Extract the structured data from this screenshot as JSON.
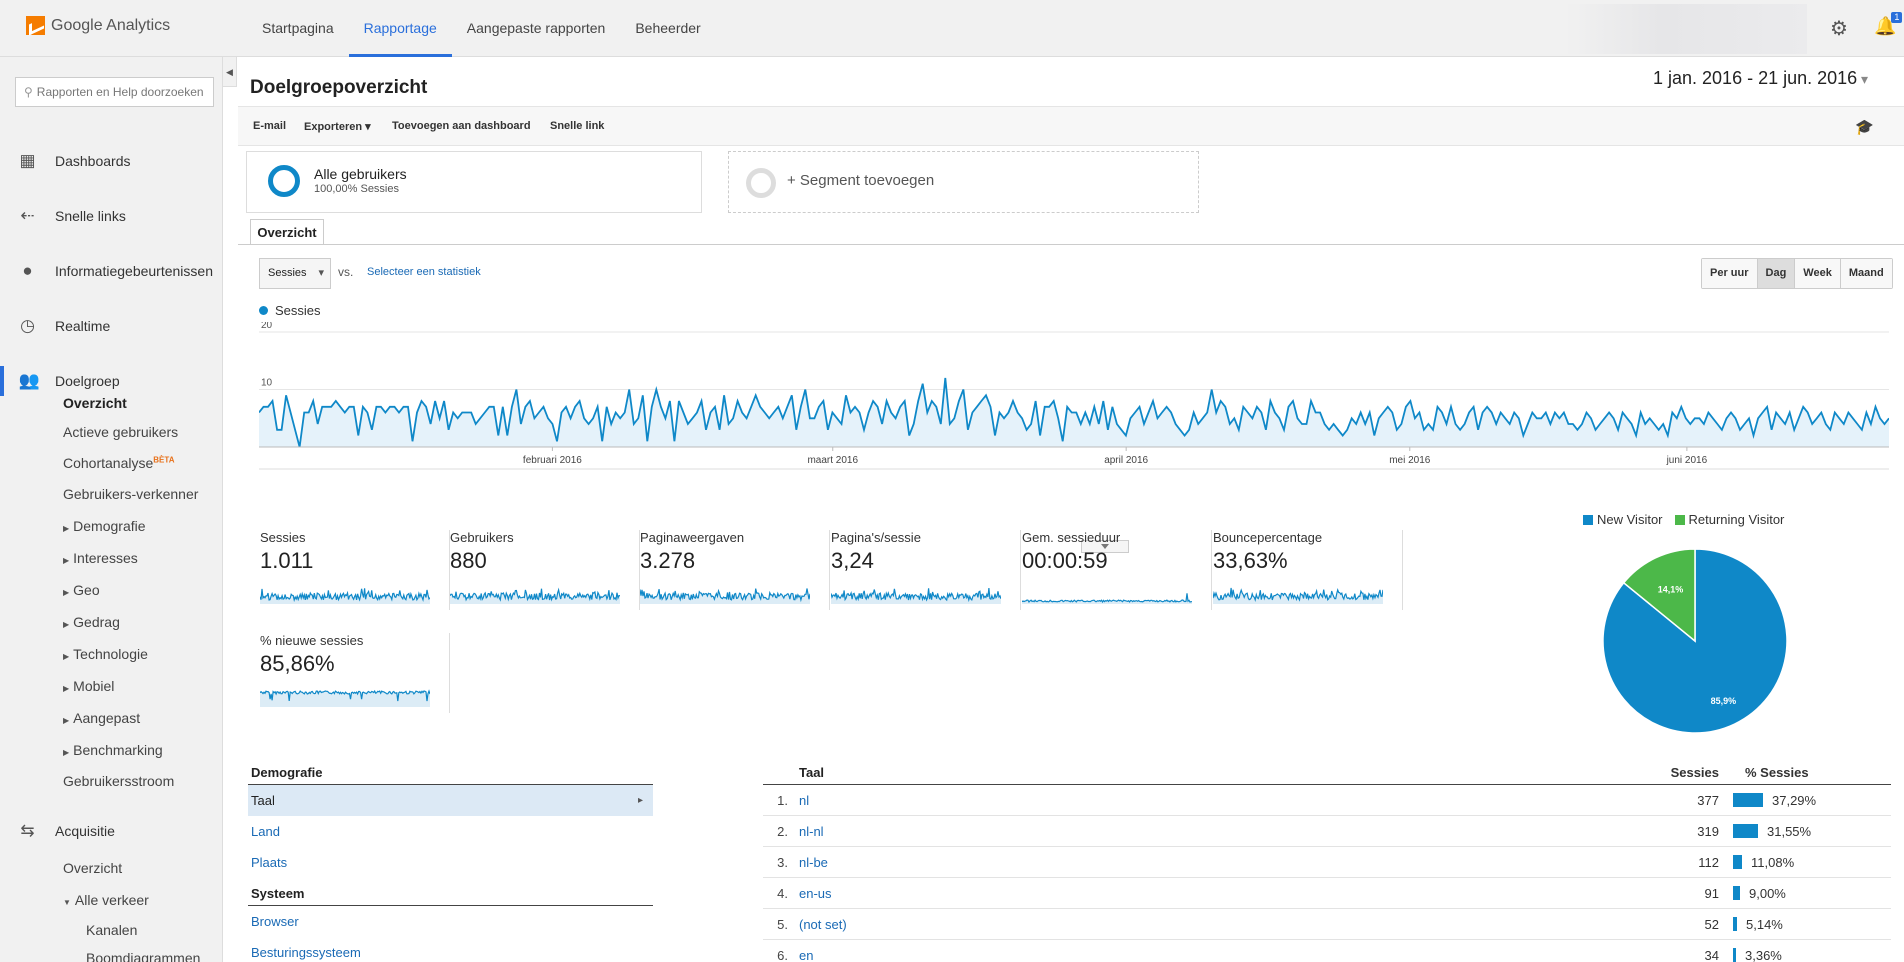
{
  "app": {
    "name": "Google Analytics"
  },
  "topnav": [
    "Startpagina",
    "Rapportage",
    "Aangepaste rapporten",
    "Beheerder"
  ],
  "notification_badge": "1",
  "sidebar": {
    "search_placeholder": "Rapporten en Help doorzoeken",
    "sections": [
      {
        "label": "Dashboards",
        "icon": "grid-icon"
      },
      {
        "label": "Snelle links",
        "icon": "arrows-icon"
      },
      {
        "label": "Informatiegebeurtenissen",
        "icon": "lightbulb-icon"
      },
      {
        "label": "Realtime",
        "icon": "clock-icon"
      },
      {
        "label": "Doelgroep",
        "icon": "people-icon"
      }
    ],
    "audience_items": [
      "Overzicht",
      "Actieve gebruikers",
      "Cohortanalyse",
      "Gebruikers-verkenner",
      "Demografie",
      "Interesses",
      "Geo",
      "Gedrag",
      "Technologie",
      "Mobiel",
      "Aangepast",
      "Benchmarking",
      "Gebruikersstroom"
    ],
    "beta_label": "BÈTA",
    "acquisition": {
      "label": "Acquisitie",
      "items": [
        "Overzicht",
        "Alle verkeer",
        "Kanalen",
        "Boomdiagrammen"
      ]
    }
  },
  "page": {
    "title": "Doelgroepoverzicht",
    "date_range": "1 jan. 2016 - 21 jun. 2016",
    "toolbar": [
      "E-mail",
      "Exporteren",
      "Toevoegen aan dashboard",
      "Snelle link"
    ],
    "segment": {
      "name": "Alle gebruikers",
      "sub": "100,00% Sessies",
      "add": "+ Segment toevoegen"
    },
    "tab": "Overzicht",
    "metric_select": "Sessies",
    "vs": "vs.",
    "select_stat": "Selecteer een statistiek",
    "period_buttons": [
      "Per uur",
      "Dag",
      "Week",
      "Maand"
    ],
    "active_period": "Dag"
  },
  "chart_data": {
    "type": "line",
    "series": [
      {
        "name": "Sessies",
        "values": [
          6,
          7,
          7,
          8,
          3,
          3,
          9,
          6,
          3,
          0,
          6,
          6,
          8,
          4,
          7,
          7,
          7,
          8,
          7,
          6,
          7,
          7,
          2,
          7,
          6,
          3,
          7,
          7,
          6,
          7,
          7,
          6,
          7,
          7,
          1,
          6,
          8,
          7,
          4,
          8,
          5,
          8,
          3,
          6,
          5,
          6,
          6,
          6,
          4,
          5,
          6,
          7,
          7,
          2,
          7,
          2,
          7,
          10,
          4,
          7,
          8,
          5,
          6,
          7,
          5,
          4,
          1,
          6,
          7,
          5,
          7,
          8,
          5,
          4,
          5,
          7,
          1,
          7,
          4,
          6,
          5,
          6,
          10,
          4,
          5,
          9,
          1,
          7,
          10,
          7,
          5,
          8,
          1,
          8,
          6,
          4,
          5,
          6,
          8,
          3,
          6,
          7,
          3,
          9,
          4,
          5,
          8,
          6,
          5,
          7,
          9,
          7,
          6,
          5,
          6,
          7,
          5,
          7,
          9,
          3,
          7,
          10,
          5,
          5,
          7,
          8,
          3,
          6,
          5,
          4,
          9,
          6,
          7,
          6,
          3,
          6,
          8,
          7,
          4,
          8,
          6,
          5,
          7,
          8,
          2,
          4,
          8,
          11,
          6,
          8,
          7,
          4,
          12,
          4,
          5,
          8,
          10,
          3,
          6,
          7,
          8,
          9,
          7,
          2,
          6,
          5,
          6,
          8,
          6,
          5,
          3,
          4,
          8,
          2,
          7,
          7,
          8,
          5,
          1,
          7,
          6,
          6,
          4,
          6,
          4,
          7,
          4,
          8,
          3,
          7,
          4,
          3,
          2,
          5,
          6,
          7,
          4,
          6,
          8,
          5,
          6,
          7,
          6,
          4,
          3,
          2,
          3,
          6,
          4,
          5,
          6,
          10,
          6,
          8,
          7,
          4,
          5,
          3,
          7,
          6,
          5,
          7,
          6,
          3,
          8,
          6,
          5,
          3,
          7,
          8,
          5,
          4,
          4,
          8,
          6,
          6,
          4,
          3,
          4,
          3,
          2,
          3,
          5,
          4,
          6,
          4,
          6,
          2,
          5,
          6,
          7,
          6,
          3,
          4,
          7,
          8,
          5,
          6,
          3,
          4,
          3,
          7,
          6,
          4,
          7,
          4,
          3,
          4,
          6,
          7,
          3,
          6,
          7,
          6,
          4,
          6,
          5,
          4,
          6,
          5,
          2,
          4,
          6,
          5,
          5,
          6,
          4,
          6,
          5,
          6,
          4,
          4,
          3,
          4,
          6,
          5,
          3,
          4,
          5,
          6,
          5,
          3,
          6,
          5,
          4,
          2,
          6,
          4,
          5,
          4,
          3,
          4,
          2,
          6,
          5,
          7,
          5,
          4,
          5,
          5,
          4,
          6,
          5,
          4,
          3,
          5,
          6,
          5,
          3,
          4,
          5,
          2,
          5,
          6,
          7,
          3,
          6,
          5,
          4,
          6,
          3,
          5,
          7,
          6,
          4,
          5,
          6,
          4,
          3,
          6,
          5,
          4,
          6,
          5,
          4,
          3,
          6,
          4,
          7,
          5,
          4,
          5
        ]
      }
    ],
    "ylim": [
      0,
      20
    ],
    "y_ticks": [
      10,
      20
    ],
    "x_labels": [
      "februari 2016",
      "maart 2016",
      "april 2016",
      "mei 2016",
      "juni 2016"
    ]
  },
  "kpis": [
    {
      "label": "Sessies",
      "value": "1.011"
    },
    {
      "label": "Gebruikers",
      "value": "880"
    },
    {
      "label": "Paginaweergaven",
      "value": "3.278"
    },
    {
      "label": "Pagina's/sessie",
      "value": "3,24"
    },
    {
      "label": "Gem. sessieduur",
      "value": "00:00:59"
    },
    {
      "label": "Bouncepercentage",
      "value": "33,63%"
    },
    {
      "label": "% nieuwe sessies",
      "value": "85,86%"
    }
  ],
  "pie": {
    "legend": [
      {
        "label": "New Visitor",
        "color": "#0f88c8"
      },
      {
        "label": "Returning Visitor",
        "color": "#4cb849"
      }
    ],
    "slices": [
      {
        "label": "85,9%",
        "value": 85.9,
        "color": "#0f88c8"
      },
      {
        "label": "14,1%",
        "value": 14.1,
        "color": "#4cb849"
      }
    ]
  },
  "dimensions": {
    "demografie_header": "Demografie",
    "demografie": [
      "Taal",
      "Land",
      "Plaats"
    ],
    "systeem_header": "Systeem",
    "systeem": [
      "Browser",
      "Besturingssysteem"
    ]
  },
  "language_table": {
    "headers": {
      "lang": "Taal",
      "sessions": "Sessies",
      "pct": "% Sessies"
    },
    "rows": [
      {
        "idx": "1.",
        "lang": "nl",
        "sessions": "377",
        "pct": "37,29%",
        "value": 37.29
      },
      {
        "idx": "2.",
        "lang": "nl-nl",
        "sessions": "319",
        "pct": "31,55%",
        "value": 31.55
      },
      {
        "idx": "3.",
        "lang": "nl-be",
        "sessions": "112",
        "pct": "11,08%",
        "value": 11.08
      },
      {
        "idx": "4.",
        "lang": "en-us",
        "sessions": "91",
        "pct": "9,00%",
        "value": 9.0
      },
      {
        "idx": "5.",
        "lang": "(not set)",
        "sessions": "52",
        "pct": "5,14%",
        "value": 5.14
      },
      {
        "idx": "6.",
        "lang": "en",
        "sessions": "34",
        "pct": "3,36%",
        "value": 3.36
      }
    ]
  }
}
